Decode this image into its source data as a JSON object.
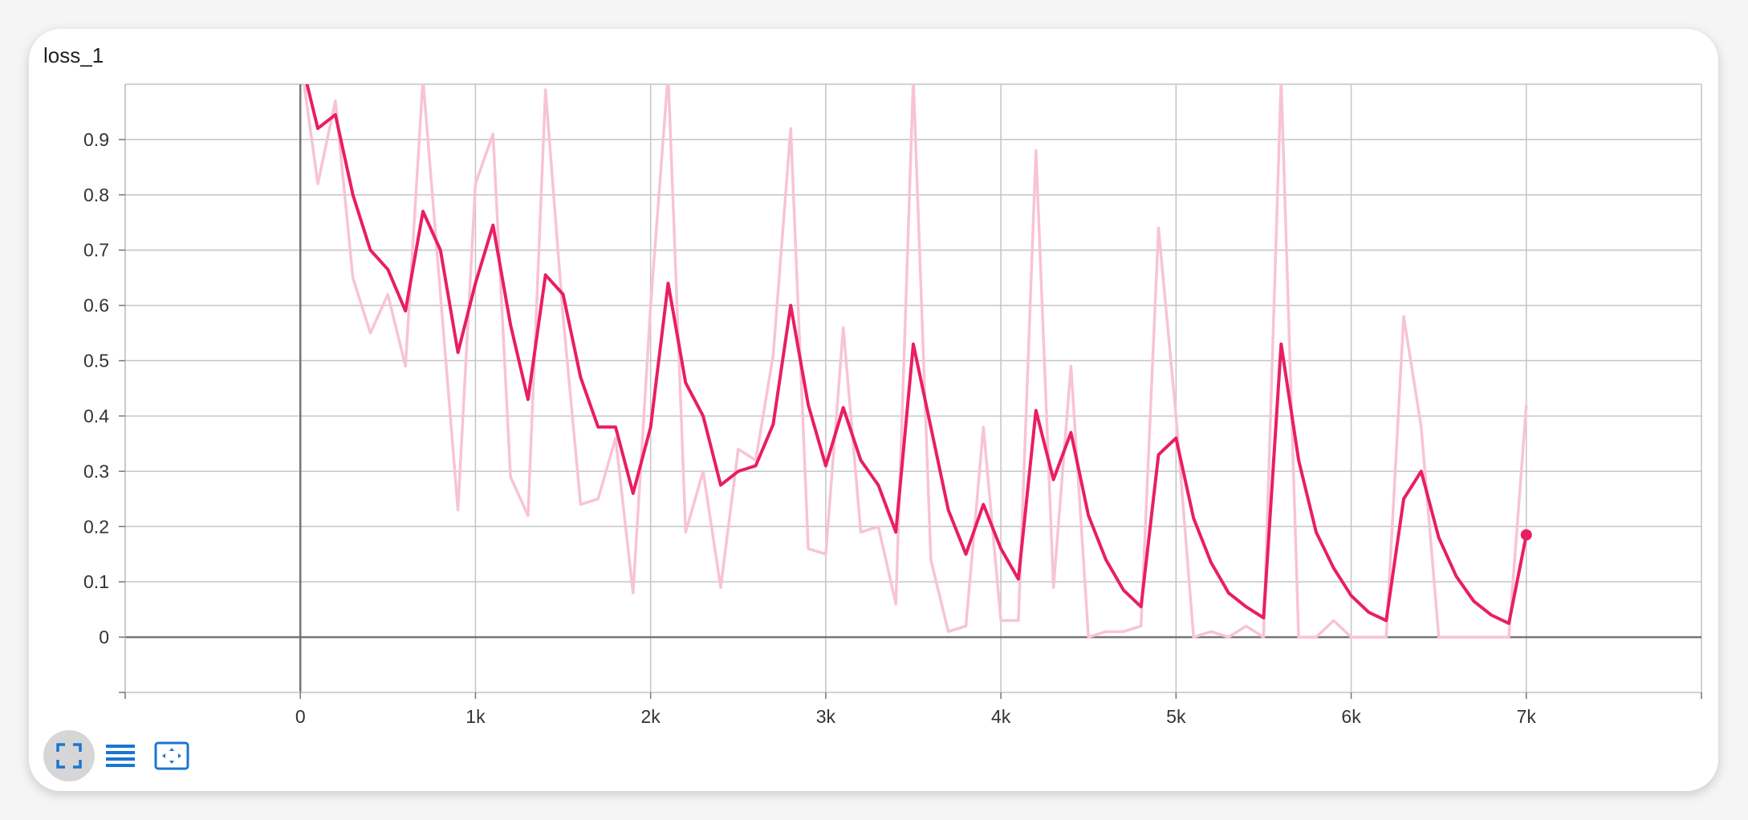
{
  "card": {
    "title": "loss_1"
  },
  "toolbar": [
    {
      "name": "fullscreen-button",
      "icon": "fullscreen-icon"
    },
    {
      "name": "toggle-log-scale-button",
      "icon": "list-lines-icon"
    },
    {
      "name": "fit-domain-button",
      "icon": "fit-to-domain-icon"
    }
  ],
  "colors": {
    "smoothed": "#e91e63",
    "raw": "#f8c3d6",
    "grid": "#c4c4c4",
    "axis": "#757575"
  },
  "chart_data": {
    "type": "line",
    "title": "loss_1",
    "xlabel": "",
    "ylabel": "",
    "xlim": [
      -1000,
      8000
    ],
    "ylim": [
      -0.1,
      1.0
    ],
    "x_ticks": [
      0,
      1000,
      2000,
      3000,
      4000,
      5000,
      6000,
      7000
    ],
    "x_tick_labels": [
      "0",
      "1k",
      "2k",
      "3k",
      "4k",
      "5k",
      "6k",
      "7k"
    ],
    "y_ticks": [
      0,
      0.1,
      0.2,
      0.3,
      0.4,
      0.5,
      0.6,
      0.7,
      0.8,
      0.9
    ],
    "y_tick_labels": [
      "0",
      "0.1",
      "0.2",
      "0.3",
      "0.4",
      "0.5",
      "0.6",
      "0.7",
      "0.8",
      "0.9"
    ],
    "grid": true,
    "series": [
      {
        "role": "raw",
        "x": [
          0,
          100,
          200,
          300,
          400,
          500,
          600,
          700,
          800,
          900,
          1000,
          1100,
          1200,
          1300,
          1400,
          1500,
          1600,
          1700,
          1800,
          1900,
          2000,
          2100,
          2200,
          2300,
          2400,
          2500,
          2600,
          2700,
          2800,
          2900,
          3000,
          3100,
          3200,
          3300,
          3400,
          3500,
          3600,
          3700,
          3800,
          3900,
          4000,
          4100,
          4200,
          4300,
          4400,
          4500,
          4600,
          4700,
          4800,
          4900,
          5000,
          5100,
          5200,
          5300,
          5400,
          5500,
          5600,
          5700,
          5800,
          5900,
          6000,
          6100,
          6200,
          6300,
          6400,
          6500,
          6600,
          6700,
          6800,
          6900,
          7000
        ],
        "y": [
          1.05,
          0.82,
          0.97,
          0.65,
          0.55,
          0.62,
          0.49,
          1.01,
          0.62,
          0.23,
          0.82,
          0.91,
          0.29,
          0.22,
          0.99,
          0.58,
          0.24,
          0.25,
          0.36,
          0.08,
          0.6,
          1.02,
          0.19,
          0.3,
          0.09,
          0.34,
          0.32,
          0.51,
          0.92,
          0.16,
          0.15,
          0.56,
          0.19,
          0.2,
          0.06,
          1.01,
          0.14,
          0.01,
          0.02,
          0.38,
          0.03,
          0.03,
          0.88,
          0.09,
          0.49,
          0.0,
          0.01,
          0.01,
          0.02,
          0.74,
          0.4,
          0.0,
          0.01,
          0.0,
          0.02,
          0.0,
          1.01,
          0.0,
          0.0,
          0.03,
          0.0,
          0.0,
          0.0,
          0.58,
          0.38,
          0.0,
          0.0,
          0.0,
          0.0,
          0.0,
          0.42
        ]
      },
      {
        "role": "smoothed",
        "x": [
          0,
          100,
          200,
          300,
          400,
          500,
          600,
          700,
          800,
          900,
          1000,
          1100,
          1200,
          1300,
          1400,
          1500,
          1600,
          1700,
          1800,
          1900,
          2000,
          2100,
          2200,
          2300,
          2400,
          2500,
          2600,
          2700,
          2800,
          2900,
          3000,
          3100,
          3200,
          3300,
          3400,
          3500,
          3600,
          3700,
          3800,
          3900,
          4000,
          4100,
          4200,
          4300,
          4400,
          4500,
          4600,
          4700,
          4800,
          4900,
          5000,
          5100,
          5200,
          5300,
          5400,
          5500,
          5600,
          5700,
          5800,
          5900,
          6000,
          6100,
          6200,
          6300,
          6400,
          6500,
          6600,
          6700,
          6800,
          6900,
          7000
        ],
        "y": [
          1.05,
          0.92,
          0.945,
          0.8,
          0.7,
          0.665,
          0.59,
          0.77,
          0.7,
          0.515,
          0.64,
          0.745,
          0.565,
          0.43,
          0.655,
          0.62,
          0.47,
          0.38,
          0.38,
          0.26,
          0.38,
          0.64,
          0.46,
          0.4,
          0.275,
          0.3,
          0.31,
          0.385,
          0.6,
          0.42,
          0.31,
          0.415,
          0.32,
          0.275,
          0.19,
          0.53,
          0.38,
          0.23,
          0.15,
          0.24,
          0.16,
          0.105,
          0.41,
          0.285,
          0.37,
          0.22,
          0.14,
          0.085,
          0.055,
          0.33,
          0.36,
          0.215,
          0.135,
          0.08,
          0.055,
          0.035,
          0.53,
          0.32,
          0.19,
          0.125,
          0.075,
          0.045,
          0.03,
          0.25,
          0.3,
          0.18,
          0.11,
          0.065,
          0.04,
          0.025,
          0.185
        ]
      }
    ]
  }
}
